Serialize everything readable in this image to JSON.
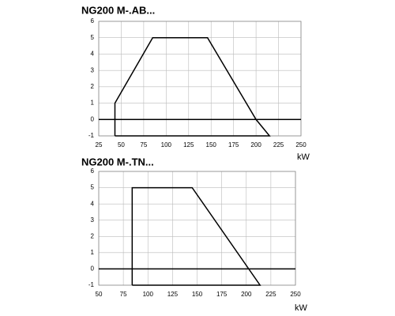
{
  "chart_data": [
    {
      "type": "line",
      "title": "NG200 M-.AB...",
      "x_label": "kW",
      "x": [
        43,
        43,
        85,
        146,
        200,
        215,
        43
      ],
      "values": [
        -1,
        1,
        5,
        5,
        0,
        -1,
        -1
      ],
      "color": "#000000",
      "xlim": [
        25,
        250
      ],
      "xticks": [
        25,
        50,
        75,
        100,
        125,
        150,
        175,
        200,
        225,
        250
      ],
      "ylim": [
        -1,
        6
      ],
      "yticks": [
        -1,
        0,
        1,
        2,
        3,
        4,
        5,
        6
      ],
      "grid": true
    },
    {
      "type": "line",
      "title": "NG200 M-.TN...",
      "x_label": "kW",
      "x": [
        84,
        84,
        145,
        214,
        84
      ],
      "values": [
        -1,
        5,
        5,
        -1,
        -1
      ],
      "color": "#000000",
      "xlim": [
        50,
        250
      ],
      "xticks": [
        50,
        75,
        100,
        125,
        150,
        175,
        200,
        225,
        250
      ],
      "ylim": [
        -1,
        6
      ],
      "yticks": [
        -1,
        0,
        1,
        2,
        3,
        4,
        5,
        6
      ],
      "grid": true
    }
  ]
}
